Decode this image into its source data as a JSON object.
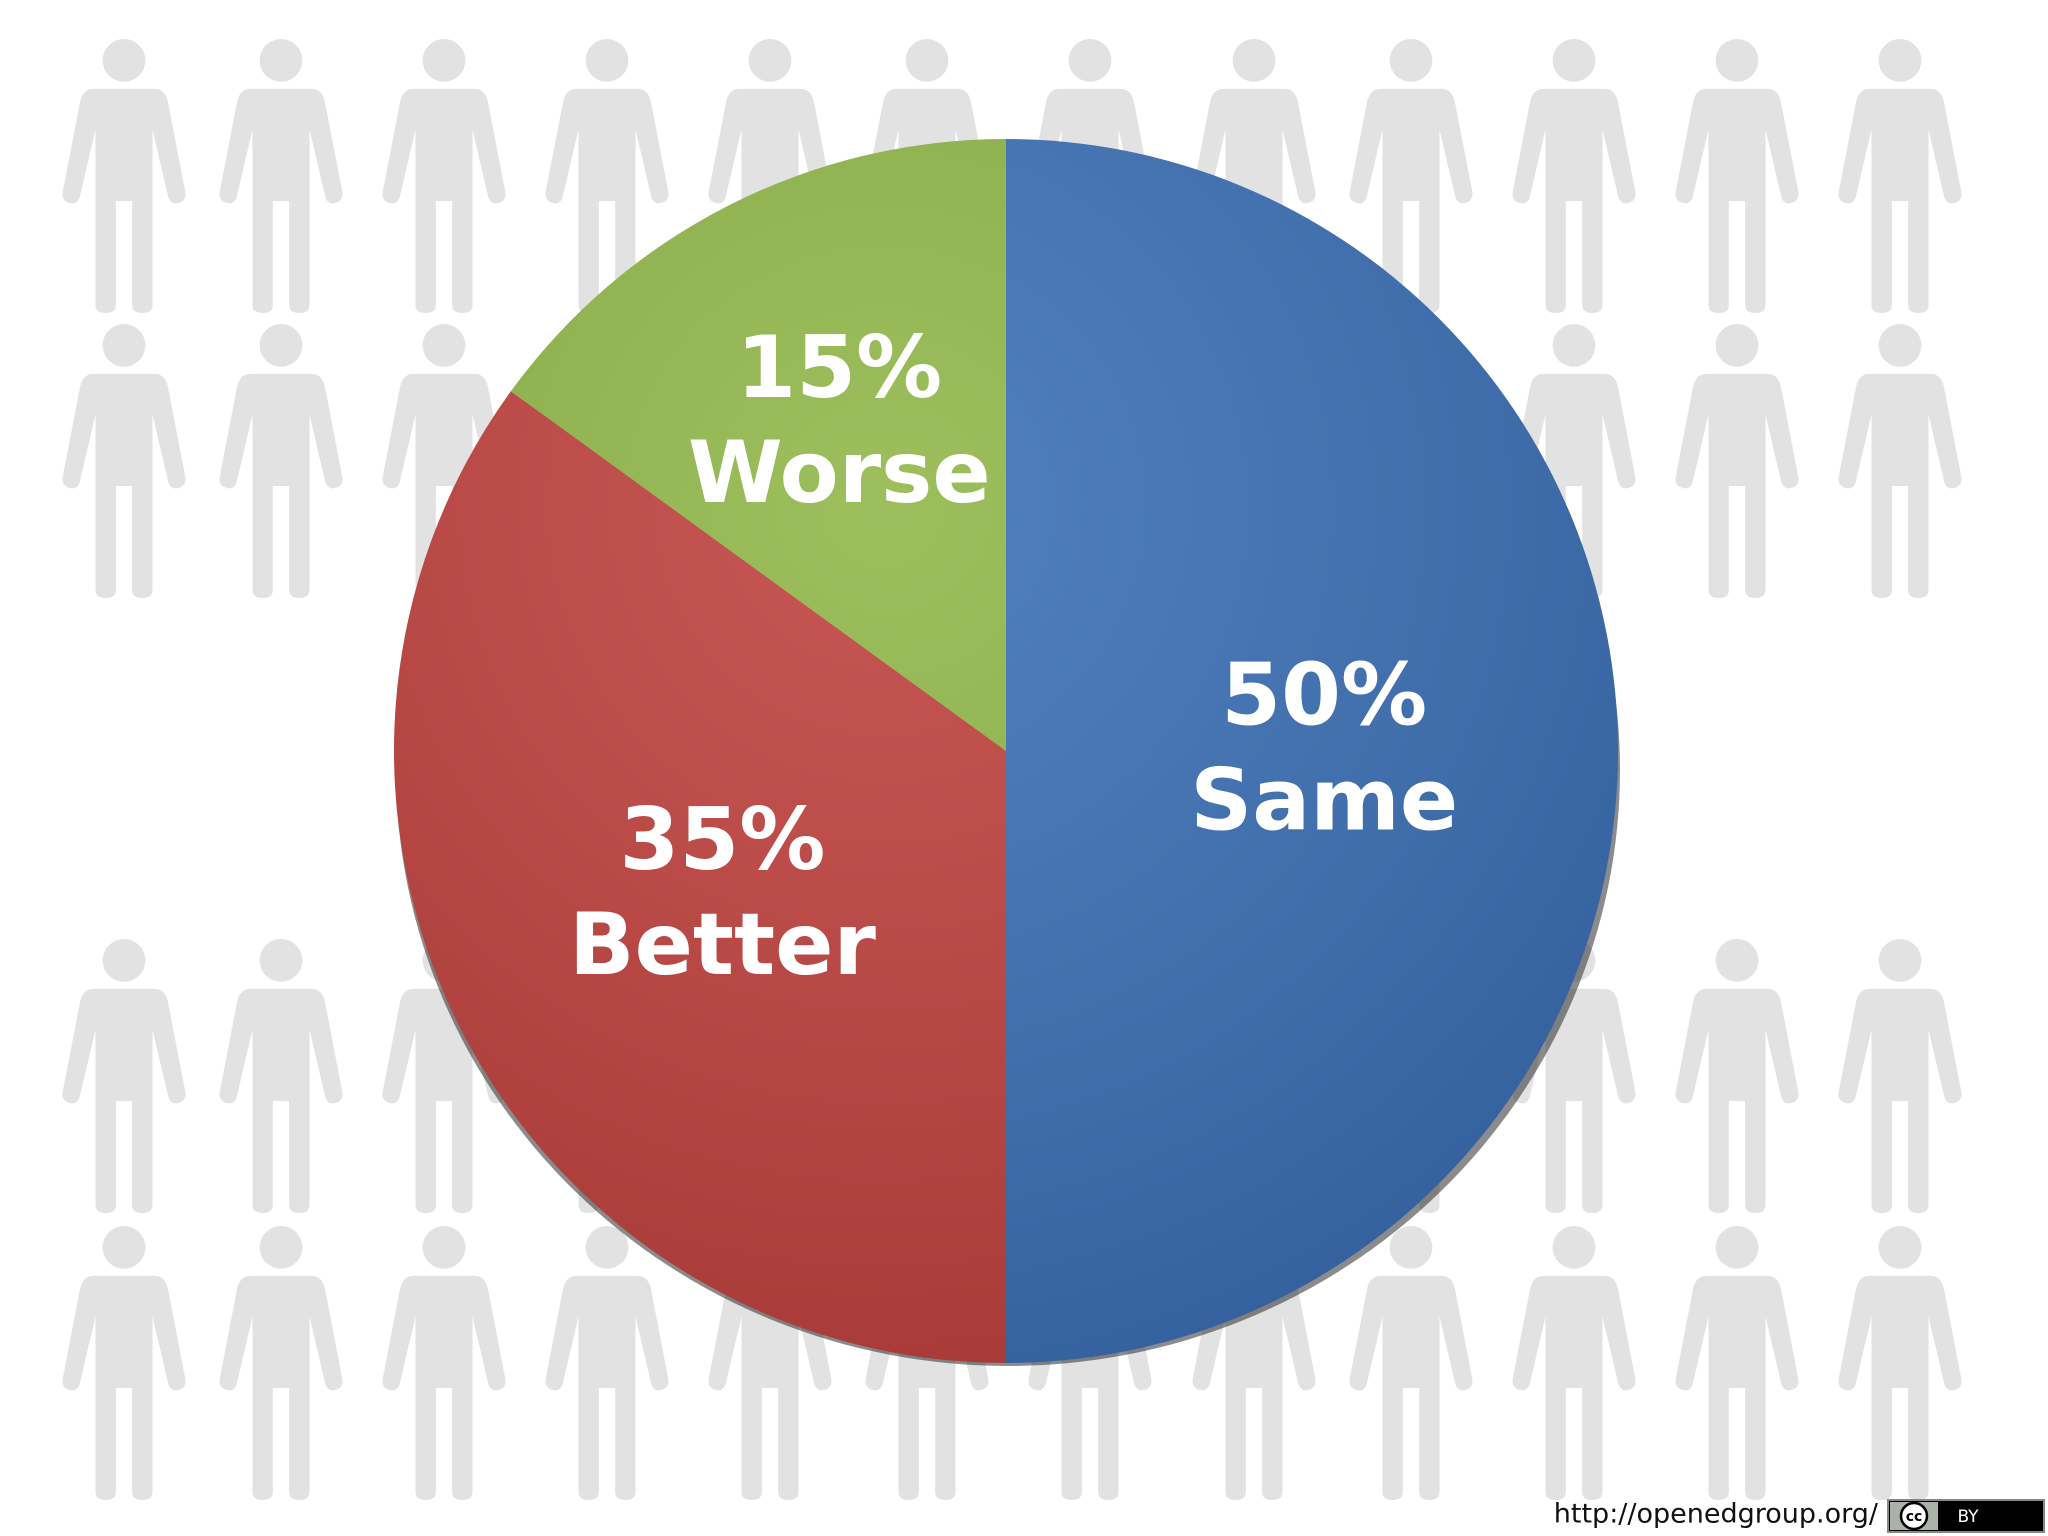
{
  "chart_data": {
    "type": "pie",
    "categories": [
      "Same",
      "Better",
      "Worse"
    ],
    "values": [
      50,
      35,
      15
    ],
    "value_labels": [
      "50%",
      "35%",
      "15%"
    ],
    "colors": [
      "#3a6fb6",
      "#c0403c",
      "#8fb646"
    ],
    "start_angle": 0,
    "direction": "clockwise"
  },
  "footer": {
    "source": "http://openedgroup.org/",
    "license_icon": "cc",
    "license": "BY"
  }
}
